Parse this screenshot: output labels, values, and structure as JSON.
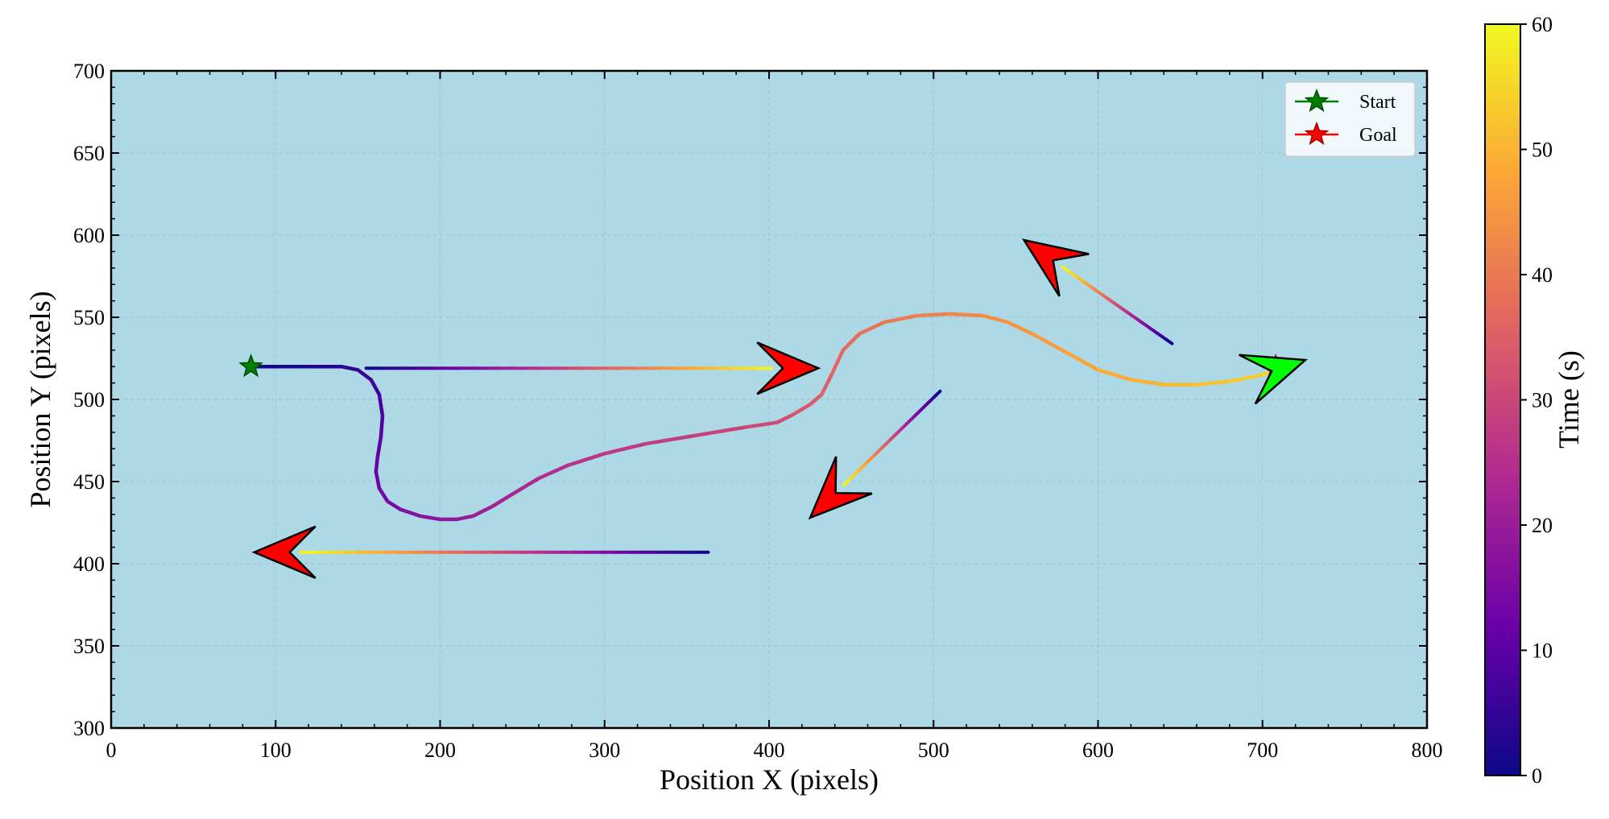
{
  "chart_data": {
    "type": "line",
    "title": "",
    "xlabel": "Position X (pixels)",
    "ylabel": "Position Y (pixels)",
    "xlim": [
      0,
      800
    ],
    "ylim": [
      300,
      700
    ],
    "xticks": [
      0,
      100,
      200,
      300,
      400,
      500,
      600,
      700,
      800
    ],
    "yticks": [
      300,
      350,
      400,
      450,
      500,
      550,
      600,
      650,
      700
    ],
    "grid": true,
    "background": "#add8e6",
    "colorbar": {
      "label": "Time (s)",
      "range": [
        0,
        60
      ],
      "ticks": [
        0,
        10,
        20,
        30,
        40,
        50,
        60
      ],
      "colormap": [
        "#0d0887",
        "#6a00a8",
        "#b12a90",
        "#e16462",
        "#fca636",
        "#f0f921"
      ]
    },
    "legend": {
      "position": "top-right",
      "entries": [
        {
          "label": "Start",
          "color": "#008000",
          "marker": "star"
        },
        {
          "label": "Goal",
          "color": "#ff0000",
          "marker": "star"
        }
      ]
    },
    "start": {
      "x": 85,
      "y": 520
    },
    "goal": {
      "x": 708,
      "y": 520
    },
    "robot_path": {
      "x": [
        85,
        100,
        120,
        140,
        150,
        158,
        163,
        165,
        164,
        162,
        161,
        163,
        168,
        176,
        188,
        200,
        210,
        220,
        232,
        245,
        260,
        278,
        300,
        325,
        355,
        385,
        405,
        415,
        425,
        432,
        438,
        445,
        455,
        470,
        490,
        510,
        530,
        545,
        560,
        580,
        600,
        620,
        640,
        660,
        680,
        700,
        708
      ],
      "y": [
        520,
        520,
        520,
        520,
        518,
        512,
        503,
        490,
        477,
        465,
        456,
        446,
        438,
        433,
        429,
        427,
        427,
        429,
        435,
        443,
        452,
        460,
        467,
        473,
        478,
        483,
        486,
        491,
        497,
        503,
        515,
        530,
        540,
        547,
        551,
        552,
        551,
        547,
        540,
        529,
        518,
        512,
        509,
        509,
        511,
        515,
        518
      ],
      "t": [
        0.0,
        1.2,
        2.4,
        3.6,
        4.8,
        6.0,
        7.2,
        8.4,
        9.6,
        10.8,
        12.0,
        13.2,
        14.4,
        15.6,
        16.8,
        18.0,
        19.2,
        20.4,
        21.6,
        22.8,
        24.0,
        25.2,
        26.4,
        27.6,
        28.8,
        30.0,
        31.2,
        32.4,
        33.6,
        34.8,
        36.0,
        37.2,
        38.4,
        39.6,
        40.8,
        42.0,
        43.2,
        44.4,
        45.6,
        46.8,
        48.0,
        49.2,
        50.4,
        51.6,
        52.8,
        54.0,
        55.2
      ]
    },
    "robot_heading": {
      "x": 708,
      "y": 518,
      "dx": 18,
      "dy": 6
    },
    "obstacles": [
      {
        "x0": 155,
        "y0": 519,
        "x1": 430,
        "y1": 519
      },
      {
        "x0": 363,
        "y0": 407,
        "x1": 87,
        "y1": 407
      },
      {
        "x0": 504,
        "y0": 505,
        "x1": 425,
        "y1": 428
      },
      {
        "x0": 645,
        "y0": 534,
        "x1": 555,
        "y1": 597
      }
    ]
  }
}
